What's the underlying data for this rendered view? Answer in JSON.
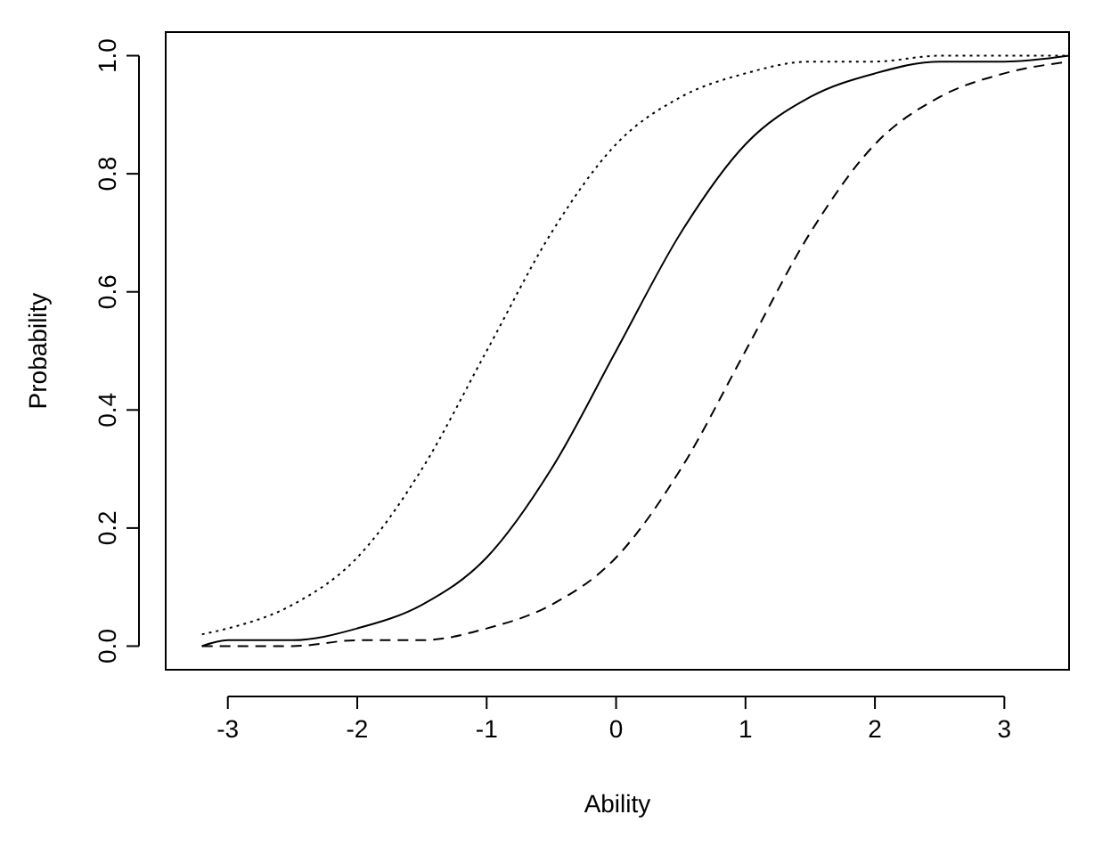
{
  "chart_data": {
    "type": "line",
    "xlabel": "Ability",
    "ylabel": "Probability",
    "x": [
      -3.2,
      -3,
      -2.5,
      -2,
      -1.5,
      -1,
      -0.5,
      0,
      0.5,
      1,
      1.5,
      2,
      2.5,
      3,
      3.5
    ],
    "xlim": [
      -3.48,
      3.5
    ],
    "xticks": [
      -3,
      -2,
      -1,
      0,
      1,
      2,
      3
    ],
    "ylim": [
      -0.04,
      1.04
    ],
    "yticks": [
      {
        "value": 0,
        "label": "0.0"
      },
      {
        "value": 0.2,
        "label": "0.2"
      },
      {
        "value": 0.4,
        "label": "0.4"
      },
      {
        "value": 0.6,
        "label": "0.6"
      },
      {
        "value": 0.8,
        "label": "0.8"
      },
      {
        "value": 1,
        "label": "1.0"
      }
    ],
    "grid": false,
    "marker": "none",
    "series": [
      {
        "color": "#000000",
        "line_style": "dotted",
        "values": [
          0.02,
          0.03,
          0.07,
          0.15,
          0.3,
          0.5,
          0.7,
          0.85,
          0.93,
          0.97,
          0.99,
          0.99,
          1.0,
          1.0,
          1.0
        ]
      },
      {
        "color": "#000000",
        "line_style": "solid",
        "values": [
          0.0,
          0.01,
          0.01,
          0.03,
          0.07,
          0.15,
          0.3,
          0.5,
          0.7,
          0.85,
          0.93,
          0.97,
          0.99,
          0.99,
          1.0
        ]
      },
      {
        "color": "#000000",
        "line_style": "dashed",
        "values": [
          0.0,
          0.0,
          0.0,
          0.01,
          0.01,
          0.03,
          0.07,
          0.15,
          0.3,
          0.5,
          0.7,
          0.85,
          0.93,
          0.97,
          0.99
        ]
      }
    ]
  }
}
